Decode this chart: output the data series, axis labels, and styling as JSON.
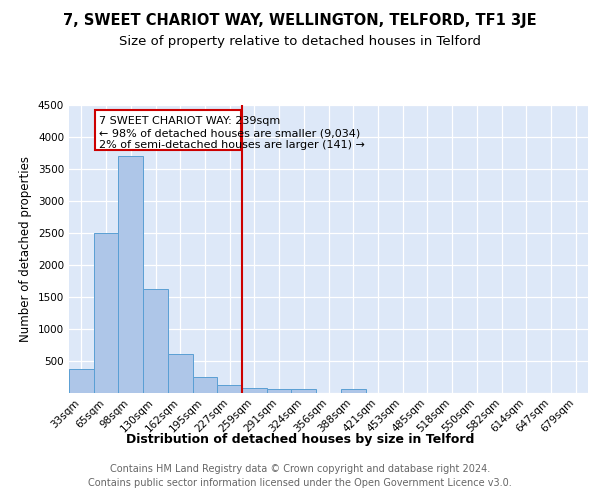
{
  "title": "7, SWEET CHARIOT WAY, WELLINGTON, TELFORD, TF1 3JE",
  "subtitle": "Size of property relative to detached houses in Telford",
  "xlabel": "Distribution of detached houses by size in Telford",
  "ylabel": "Number of detached properties",
  "categories": [
    "33sqm",
    "65sqm",
    "98sqm",
    "130sqm",
    "162sqm",
    "195sqm",
    "227sqm",
    "259sqm",
    "291sqm",
    "324sqm",
    "356sqm",
    "388sqm",
    "421sqm",
    "453sqm",
    "485sqm",
    "518sqm",
    "550sqm",
    "582sqm",
    "614sqm",
    "647sqm",
    "679sqm"
  ],
  "values": [
    375,
    2500,
    3700,
    1620,
    600,
    240,
    110,
    75,
    55,
    50,
    0,
    60,
    0,
    0,
    0,
    0,
    0,
    0,
    0,
    0,
    0
  ],
  "bar_color": "#aec6e8",
  "bar_edge_color": "#5a9fd4",
  "vline_x_index": 7,
  "vline_color": "#cc0000",
  "annotation_line1": "7 SWEET CHARIOT WAY: 239sqm",
  "annotation_line2": "← 98% of detached houses are smaller (9,034)",
  "annotation_line3": "2% of semi-detached houses are larger (141) →",
  "annotation_box_color": "#ffffff",
  "annotation_box_edge_color": "#cc0000",
  "ylim": [
    0,
    4500
  ],
  "yticks": [
    0,
    500,
    1000,
    1500,
    2000,
    2500,
    3000,
    3500,
    4000,
    4500
  ],
  "footer_text": "Contains HM Land Registry data © Crown copyright and database right 2024.\nContains public sector information licensed under the Open Government Licence v3.0.",
  "background_color": "#dde8f8",
  "grid_color": "#ffffff",
  "title_fontsize": 10.5,
  "subtitle_fontsize": 9.5,
  "ylabel_fontsize": 8.5,
  "xlabel_fontsize": 9,
  "tick_fontsize": 7.5,
  "annotation_fontsize": 8,
  "footer_fontsize": 7
}
